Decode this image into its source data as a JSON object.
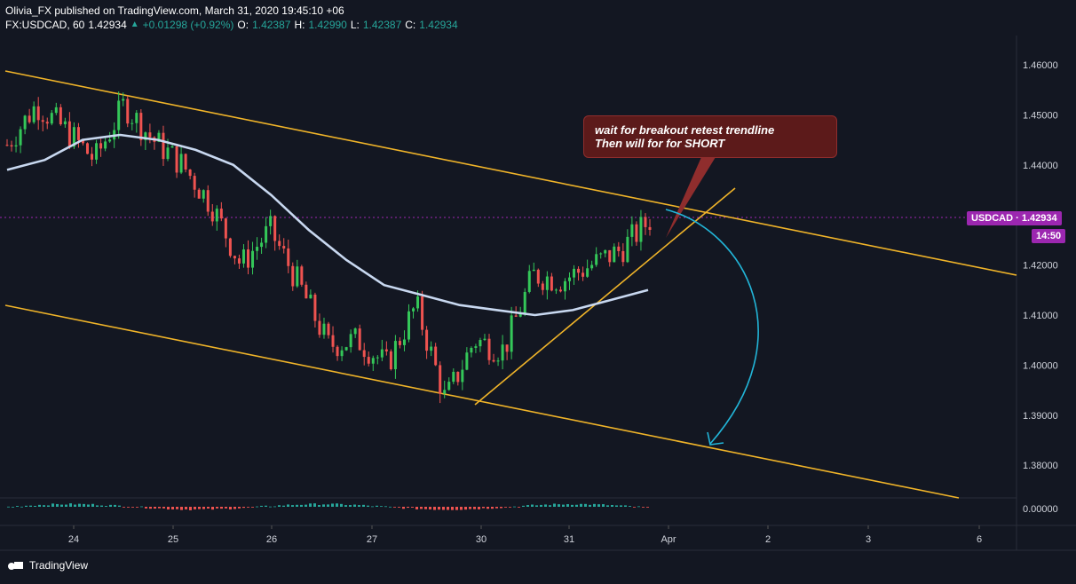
{
  "header": {
    "published": "Olivia_FX published on TradingView.com, March 31, 2020 19:45:10 +06",
    "symbol": "FX:USDCAD, 60",
    "last": "1.42934",
    "change": "+0.01298 (+0.92%)",
    "o_label": "O:",
    "o": "1.42387",
    "h_label": "H:",
    "h": "1.42990",
    "l_label": "L:",
    "l": "1.42387",
    "c_label": "C:",
    "c": "1.42934"
  },
  "price_axis": [
    "1.46000",
    "1.45000",
    "1.44000",
    "1.42000",
    "1.41000",
    "1.40000",
    "1.39000",
    "1.38000"
  ],
  "indicator_axis": "0.00000",
  "time_axis": [
    "24",
    "25",
    "26",
    "27",
    "30",
    "31",
    "Apr",
    "2",
    "3",
    "6"
  ],
  "badges": {
    "symbol_price": "USDCAD · 1.42934",
    "countdown": "14:50"
  },
  "annotation": {
    "line1": "wait for breakout retest trendline",
    "line2": "Then will for for SHORT"
  },
  "footer": {
    "brand": "TradingView"
  },
  "colors": {
    "background": "#131722",
    "bull": "#26a69a",
    "bull_bright": "#34c759",
    "bear": "#ef5350",
    "trendline": "#f0b429",
    "ma": "#c8d8f0",
    "arrow": "#22b5d8",
    "badge": "#9c27b0"
  },
  "chart_data": {
    "type": "candlestick",
    "symbol": "USDCAD",
    "timeframe": "60",
    "x": [
      "24",
      "25",
      "26",
      "27",
      "30",
      "31",
      "Apr",
      "2",
      "3",
      "6"
    ],
    "ylim": [
      1.375,
      1.462
    ],
    "last_price": 1.42934,
    "ma_path_prices": [
      1.439,
      1.441,
      1.445,
      1.446,
      1.445,
      1.443,
      1.44,
      1.434,
      1.427,
      1.421,
      1.416,
      1.414,
      1.412,
      1.411,
      1.41,
      1.411,
      1.413,
      1.415
    ],
    "close_path": [
      1.444,
      1.452,
      1.447,
      1.441,
      1.452,
      1.445,
      1.44,
      1.432,
      1.42,
      1.427,
      1.416,
      1.404,
      1.405,
      1.4,
      1.412,
      1.393,
      1.405,
      1.403,
      1.418,
      1.417,
      1.42,
      1.423,
      1.429
    ]
  }
}
